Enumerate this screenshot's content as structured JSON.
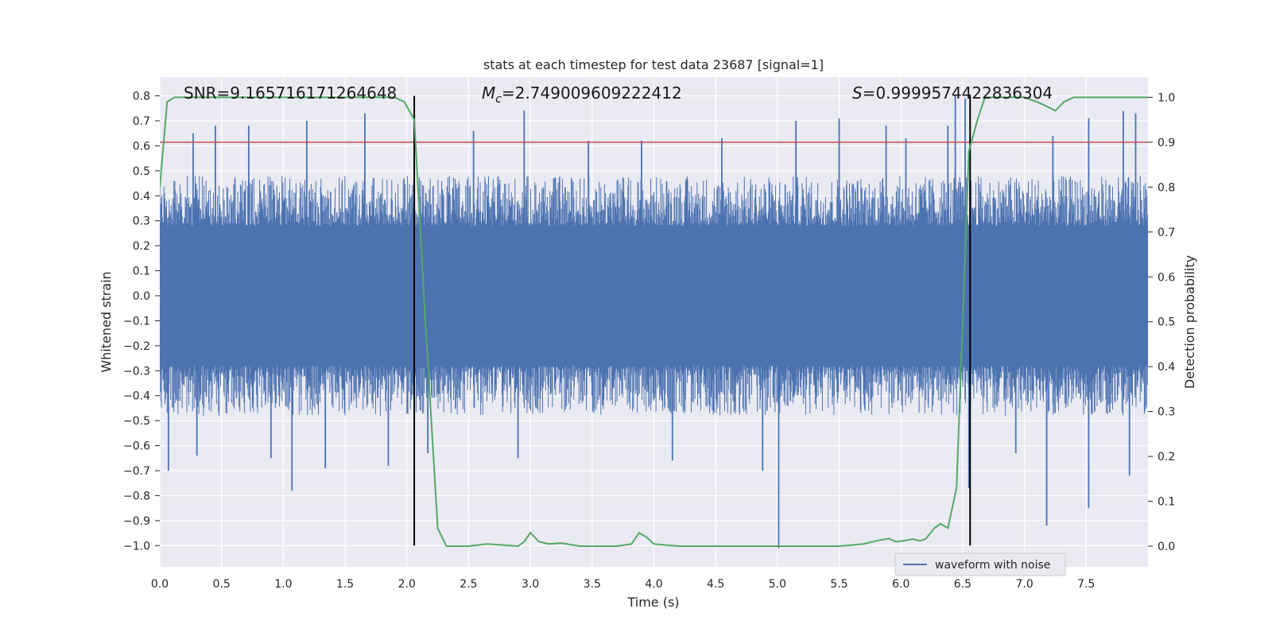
{
  "chart_data": {
    "type": "line",
    "title": "stats at each timestep for test data 23687 [signal=1]",
    "xlabel": "Time (s)",
    "ylabel": "Whitened strain",
    "ylabel_right": "Detection probability",
    "xlim": [
      0.0,
      8.0
    ],
    "ylim": [
      -1.085,
      0.875
    ],
    "ylim_right": [
      -0.046,
      1.045
    ],
    "x_ticks": [
      0.0,
      0.5,
      1.0,
      1.5,
      2.0,
      2.5,
      3.0,
      3.5,
      4.0,
      4.5,
      5.0,
      5.5,
      6.0,
      6.5,
      7.0,
      7.5
    ],
    "x_tick_labels": [
      "0.0",
      "0.5",
      "1.0",
      "1.5",
      "2.0",
      "2.5",
      "3.0",
      "3.5",
      "4.0",
      "4.5",
      "5.0",
      "5.5",
      "6.0",
      "6.5",
      "7.0",
      "7.5"
    ],
    "y_ticks": [
      0.8,
      0.7,
      0.6,
      0.5,
      0.4,
      0.3,
      0.2,
      0.1,
      0.0,
      -0.1,
      -0.2,
      -0.3,
      -0.4,
      -0.5,
      -0.6,
      -0.7,
      -0.8,
      -0.9,
      -1.0
    ],
    "y_tick_labels": [
      "0.8",
      "0.7",
      "0.6",
      "0.5",
      "0.4",
      "0.3",
      "0.2",
      "0.1",
      "0.0",
      "−0.1",
      "−0.2",
      "−0.3",
      "−0.4",
      "−0.5",
      "−0.6",
      "−0.7",
      "−0.8",
      "−0.9",
      "−1.0"
    ],
    "y_ticks_right": [
      1.0,
      0.9,
      0.8,
      0.7,
      0.6,
      0.5,
      0.4,
      0.3,
      0.2,
      0.1,
      0.0
    ],
    "y_tick_labels_right": [
      "1.0",
      "0.9",
      "0.8",
      "0.7",
      "0.6",
      "0.5",
      "0.4",
      "0.3",
      "0.2",
      "0.1",
      "0.0"
    ],
    "annotations": {
      "snr": "SNR=9.165716171264648",
      "mc_symbol": "M",
      "mc_sub": "c",
      "mc_value": "=2.749009609222412",
      "s_symbol": "S",
      "s_value": "=0.9999574422836304"
    },
    "vlines": [
      2.06,
      6.56
    ],
    "vlines_range": [
      -1.0,
      0.8
    ],
    "threshold": 0.9,
    "threshold_color": "#c44e52",
    "waveform": {
      "name": "waveform with noise",
      "color": "#4c72b0",
      "envelope_core": 0.28,
      "typical_peak": 0.45,
      "extreme_peaks": [
        {
          "t": 0.07,
          "v": -0.7
        },
        {
          "t": 0.27,
          "v": 0.65
        },
        {
          "t": 0.3,
          "v": -0.64
        },
        {
          "t": 0.45,
          "v": 0.68
        },
        {
          "t": 0.72,
          "v": 0.68
        },
        {
          "t": 0.9,
          "v": -0.65
        },
        {
          "t": 1.07,
          "v": -0.78
        },
        {
          "t": 1.19,
          "v": 0.7
        },
        {
          "t": 1.34,
          "v": -0.69
        },
        {
          "t": 1.66,
          "v": 0.73
        },
        {
          "t": 1.85,
          "v": -0.68
        },
        {
          "t": 2.17,
          "v": -0.63
        },
        {
          "t": 2.54,
          "v": 0.66
        },
        {
          "t": 2.9,
          "v": -0.65
        },
        {
          "t": 2.95,
          "v": 0.74
        },
        {
          "t": 3.47,
          "v": 0.62
        },
        {
          "t": 3.9,
          "v": 0.62
        },
        {
          "t": 4.15,
          "v": -0.66
        },
        {
          "t": 4.55,
          "v": 0.63
        },
        {
          "t": 4.88,
          "v": -0.7
        },
        {
          "t": 5.01,
          "v": -1.01
        },
        {
          "t": 5.15,
          "v": 0.7
        },
        {
          "t": 5.5,
          "v": 0.71
        },
        {
          "t": 5.88,
          "v": 0.68
        },
        {
          "t": 6.04,
          "v": 0.63
        },
        {
          "t": 6.38,
          "v": 0.68
        },
        {
          "t": 6.44,
          "v": 0.8
        },
        {
          "t": 6.52,
          "v": 0.79
        },
        {
          "t": 6.55,
          "v": -0.77
        },
        {
          "t": 6.93,
          "v": -0.63
        },
        {
          "t": 7.18,
          "v": -0.92
        },
        {
          "t": 7.23,
          "v": 0.64
        },
        {
          "t": 7.52,
          "v": 0.71
        },
        {
          "t": 7.52,
          "v": -0.85
        },
        {
          "t": 7.8,
          "v": 0.74
        },
        {
          "t": 7.85,
          "v": -0.72
        },
        {
          "t": 7.9,
          "v": 0.73
        }
      ]
    },
    "probability": {
      "name": "detection probability",
      "color": "#55a868",
      "t": [
        0.0,
        0.06,
        0.12,
        0.5,
        1.0,
        1.5,
        1.9,
        1.98,
        2.06,
        2.15,
        2.25,
        2.32,
        2.5,
        2.65,
        2.9,
        2.95,
        3.0,
        3.07,
        3.15,
        3.25,
        3.4,
        3.7,
        3.82,
        3.88,
        3.94,
        4.0,
        4.2,
        4.5,
        5.0,
        5.5,
        5.7,
        5.8,
        5.9,
        5.96,
        6.02,
        6.1,
        6.15,
        6.2,
        6.27,
        6.32,
        6.38,
        6.45,
        6.5,
        6.55,
        6.62,
        6.68,
        6.75,
        7.0,
        7.1,
        7.18,
        7.25,
        7.32,
        7.4,
        7.6,
        8.0
      ],
      "v": [
        0.8,
        0.99,
        1.0,
        1.0,
        1.0,
        1.0,
        1.0,
        0.99,
        0.95,
        0.5,
        0.04,
        0.0,
        0.0,
        0.005,
        0.0,
        0.01,
        0.03,
        0.01,
        0.005,
        0.007,
        0.0,
        0.0,
        0.005,
        0.03,
        0.02,
        0.005,
        0.0,
        0.0,
        0.0,
        0.0,
        0.005,
        0.012,
        0.017,
        0.01,
        0.012,
        0.016,
        0.012,
        0.016,
        0.04,
        0.05,
        0.04,
        0.13,
        0.5,
        0.88,
        0.95,
        1.0,
        1.0,
        1.0,
        0.99,
        0.98,
        0.97,
        0.99,
        1.0,
        1.0,
        1.0
      ]
    },
    "grid": true,
    "legend": {
      "position": "bottom-right",
      "entries": [
        "waveform with noise"
      ]
    }
  }
}
